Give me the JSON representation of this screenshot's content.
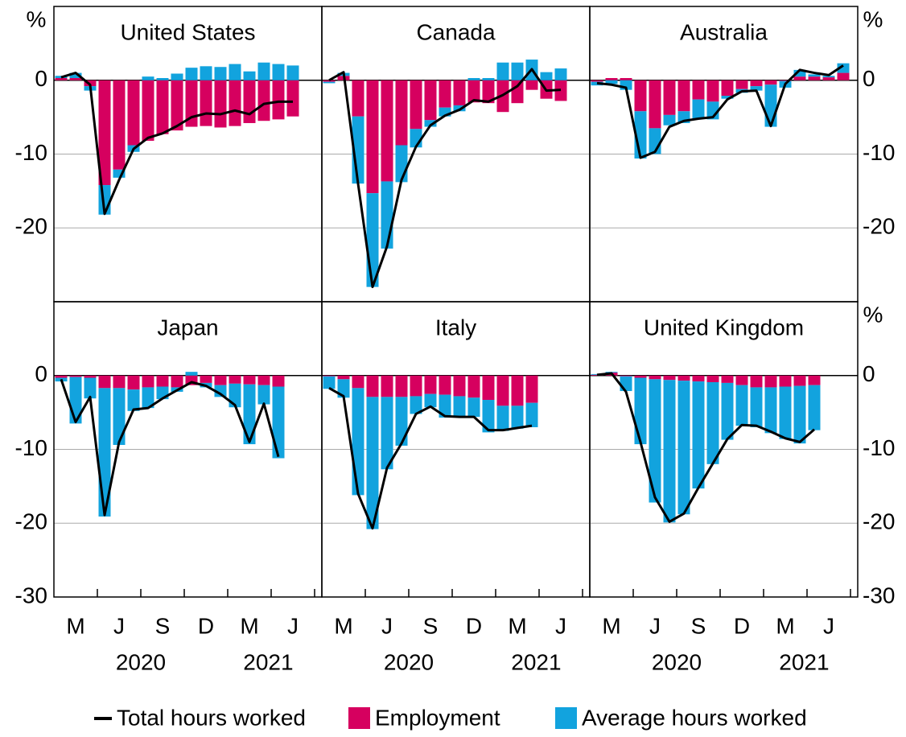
{
  "legend": [
    {
      "name": "Total hours worked",
      "color": "#000000"
    },
    {
      "name": "Employment",
      "color": "#d6005f"
    },
    {
      "name": "Average hours worked",
      "color": "#12a3de"
    }
  ],
  "chart_data": [
    {
      "type": "bar",
      "title": "United States",
      "y_unit": "%",
      "ylim": [
        -30,
        10
      ],
      "yticks": [
        0,
        -10,
        -20
      ],
      "series": [
        {
          "type": "line",
          "values": [
            0.4,
            1.0,
            -0.6,
            -18.1,
            -13.5,
            -9.3,
            -7.8,
            -7.2,
            -6.2,
            -5.0,
            -4.5,
            -4.6,
            -4.1,
            -4.6,
            -3.2,
            -2.9,
            -2.9,
            null
          ]
        },
        {
          "type": "bar",
          "values": [
            0.3,
            0.3,
            -0.8,
            -14.2,
            -12.1,
            -8.8,
            -8.2,
            -7.3,
            -6.8,
            -6.3,
            -6.2,
            -6.4,
            -6.2,
            -5.8,
            -5.5,
            -5.3,
            -4.9,
            null
          ]
        },
        {
          "type": "bar",
          "values": [
            0.3,
            0.7,
            -0.6,
            -4.0,
            -1.1,
            -0.9,
            0.5,
            0.3,
            0.9,
            1.7,
            1.9,
            1.8,
            2.2,
            1.2,
            2.4,
            2.2,
            2.0,
            null
          ]
        }
      ]
    },
    {
      "type": "bar",
      "title": "Canada",
      "ylim": [
        -30,
        10
      ],
      "yticks": [
        0,
        -10,
        -20
      ],
      "series": [
        {
          "type": "line",
          "values": [
            0.0,
            1.1,
            -14.0,
            -28.0,
            -22.5,
            -13.5,
            -9.0,
            -6.1,
            -4.8,
            -4.0,
            -2.7,
            -2.9,
            -2.0,
            -0.8,
            1.5,
            -1.4,
            -1.3,
            null
          ]
        },
        {
          "type": "bar",
          "values": [
            -0.2,
            0.6,
            -4.9,
            -15.3,
            -13.7,
            -8.8,
            -6.6,
            -5.4,
            -3.7,
            -3.4,
            -3.0,
            -3.1,
            -4.3,
            -3.1,
            -1.3,
            -2.5,
            -2.8,
            null
          ]
        },
        {
          "type": "bar",
          "values": [
            -0.2,
            0.4,
            -9.1,
            -12.7,
            -9.1,
            -5.0,
            -2.5,
            -0.9,
            -1.2,
            -0.8,
            0.3,
            0.3,
            2.4,
            2.4,
            2.8,
            1.1,
            1.6,
            null
          ]
        }
      ]
    },
    {
      "type": "bar",
      "title": "Australia",
      "y_unit": "%",
      "ylim": [
        -30,
        10
      ],
      "yticks": [
        0,
        -10,
        -20
      ],
      "series": [
        {
          "type": "line",
          "values": [
            -0.4,
            -0.6,
            -1.0,
            -10.5,
            -9.7,
            -6.3,
            -5.5,
            -5.2,
            -5.0,
            -2.6,
            -1.5,
            -1.4,
            -6.2,
            -0.5,
            1.4,
            1.0,
            0.7,
            2.0
          ]
        },
        {
          "type": "bar",
          "values": [
            -0.2,
            0.3,
            0.3,
            -4.2,
            -6.5,
            -4.7,
            -4.2,
            -2.6,
            -2.9,
            -2.1,
            -1.2,
            -0.8,
            -0.6,
            -0.1,
            0.5,
            0.5,
            0.4,
            1.0
          ]
        },
        {
          "type": "bar",
          "values": [
            -0.5,
            -0.5,
            -1.3,
            -6.4,
            -3.5,
            -1.4,
            -1.6,
            -2.6,
            -2.4,
            -0.4,
            -0.5,
            -0.6,
            -5.7,
            -0.9,
            0.9,
            0.3,
            0.2,
            1.3
          ]
        }
      ]
    },
    {
      "type": "bar",
      "title": "Japan",
      "ylim": [
        -30,
        10
      ],
      "yticks": [
        0,
        -10,
        -20,
        -30
      ],
      "categories": [
        null,
        "M",
        null,
        null,
        "J",
        null,
        null,
        "S",
        null,
        null,
        "D",
        null,
        null,
        "M",
        null,
        null,
        "J",
        null
      ],
      "x_groups": [
        "2020",
        "2021"
      ],
      "series": [
        {
          "type": "line",
          "values": [
            -0.5,
            -6.3,
            -2.9,
            -18.9,
            -9.0,
            -4.6,
            -4.4,
            -3.1,
            -2.0,
            -0.9,
            -1.4,
            -2.5,
            -4.0,
            -9.0,
            -3.8,
            -11.0,
            null,
            null
          ]
        },
        {
          "type": "bar",
          "values": [
            -0.3,
            -0.2,
            -0.3,
            -1.7,
            -1.7,
            -1.9,
            -1.6,
            -1.5,
            -1.6,
            -1.3,
            -1.0,
            -1.3,
            -1.1,
            -1.2,
            -1.3,
            -1.5,
            null,
            null
          ]
        },
        {
          "type": "bar",
          "values": [
            -0.5,
            -6.3,
            -2.8,
            -17.4,
            -7.7,
            -2.9,
            -2.8,
            -1.7,
            -0.6,
            0.5,
            -0.6,
            -1.6,
            -3.2,
            -8.1,
            -2.6,
            -9.7,
            null,
            null
          ]
        }
      ]
    },
    {
      "type": "bar",
      "title": "Italy",
      "ylim": [
        -30,
        10
      ],
      "yticks": [
        0,
        -10,
        -20,
        -30
      ],
      "categories": [
        null,
        "M",
        null,
        null,
        "J",
        null,
        null,
        "S",
        null,
        null,
        "D",
        null,
        null,
        "M",
        null,
        null,
        "J",
        null
      ],
      "x_groups": [
        "2020",
        "2021"
      ],
      "series": [
        {
          "type": "line",
          "values": [
            -1.7,
            -2.8,
            -16.0,
            -20.7,
            -12.5,
            -9.2,
            -5.2,
            -4.2,
            -5.5,
            -5.6,
            -5.6,
            -7.4,
            -7.4,
            -7.1,
            -6.8,
            null,
            null,
            null
          ]
        },
        {
          "type": "bar",
          "values": [
            -0.1,
            -0.5,
            -1.7,
            -2.9,
            -2.9,
            -2.9,
            -2.8,
            -2.5,
            -2.6,
            -2.8,
            -3.0,
            -3.3,
            -4.1,
            -4.1,
            -3.7,
            null,
            null,
            null
          ]
        },
        {
          "type": "bar",
          "values": [
            -1.7,
            -2.5,
            -14.5,
            -17.9,
            -9.8,
            -6.6,
            -2.4,
            -1.8,
            -3.1,
            -2.8,
            -2.6,
            -4.4,
            -3.4,
            -3.1,
            -3.3,
            null,
            null,
            null
          ]
        }
      ]
    },
    {
      "type": "bar",
      "title": "United Kingdom",
      "y_unit": "%",
      "ylim": [
        -30,
        10
      ],
      "yticks": [
        0,
        -10,
        -20,
        -30
      ],
      "categories": [
        null,
        "M",
        null,
        null,
        "J",
        null,
        null,
        "S",
        null,
        null,
        "D",
        null,
        null,
        "M",
        null,
        null,
        "J",
        null
      ],
      "x_groups": [
        "2020",
        "2021"
      ],
      "series": [
        {
          "type": "line",
          "values": [
            0.1,
            0.3,
            -2.2,
            -9.0,
            -16.5,
            -19.8,
            -18.7,
            -15.2,
            -11.9,
            -8.6,
            -6.7,
            -6.8,
            -7.6,
            -8.5,
            -9.0,
            -7.3,
            null,
            null
          ]
        },
        {
          "type": "bar",
          "values": [
            0.1,
            0.4,
            -0.1,
            -0.3,
            -0.5,
            -0.6,
            -0.7,
            -0.8,
            -0.9,
            -1.0,
            -1.3,
            -1.6,
            -1.6,
            -1.5,
            -1.4,
            -1.3,
            null,
            null
          ]
        },
        {
          "type": "bar",
          "values": [
            0.1,
            0.1,
            -2.0,
            -9.0,
            -16.7,
            -19.3,
            -18.1,
            -14.5,
            -11.1,
            -7.7,
            -5.5,
            -5.4,
            -6.2,
            -7.1,
            -7.8,
            -6.1,
            null,
            null
          ]
        }
      ]
    }
  ]
}
